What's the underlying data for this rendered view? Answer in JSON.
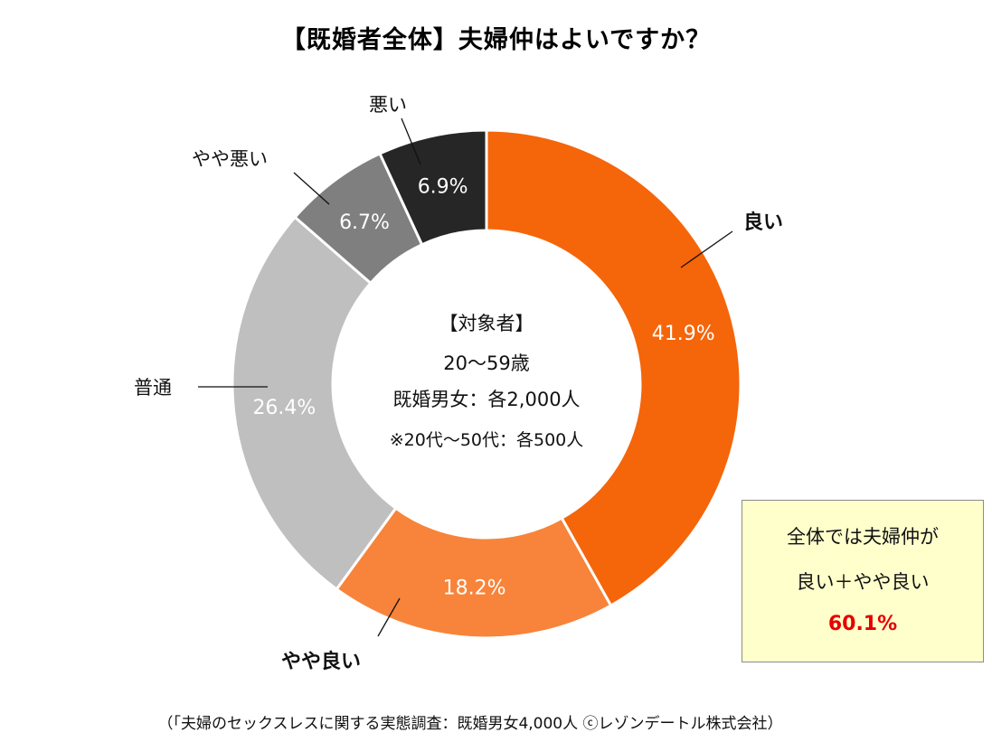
{
  "chart_data": {
    "type": "pie",
    "style": "donut",
    "title": "【既婚者全体】夫婦仲はよいですか？",
    "categories": [
      "良い",
      "やや良い",
      "普通",
      "やや悪い",
      "悪い"
    ],
    "values": [
      41.9,
      18.2,
      26.4,
      6.7,
      6.9
    ],
    "value_labels": [
      "41.9%",
      "18.2%",
      "26.4%",
      "6.7%",
      "6.9%"
    ],
    "colors": [
      "#f5650a",
      "#f7843a",
      "#bfbfbf",
      "#7f7f7f",
      "#262626"
    ],
    "bold_categories": [
      "良い",
      "やや良い"
    ],
    "center_text": [
      "【対象者】",
      "20～59歳",
      "既婚男女：各2,000人",
      "※20代～50代：各500人"
    ]
  },
  "summary_box": {
    "line1": "全体では夫婦仲が",
    "line2": "良い＋やや良い",
    "line3": "60.1%"
  },
  "source_note": "（「夫婦のセックスレスに関する実態調査：既婚男女4,000人 ⓒレゾンデートル株式会社）"
}
